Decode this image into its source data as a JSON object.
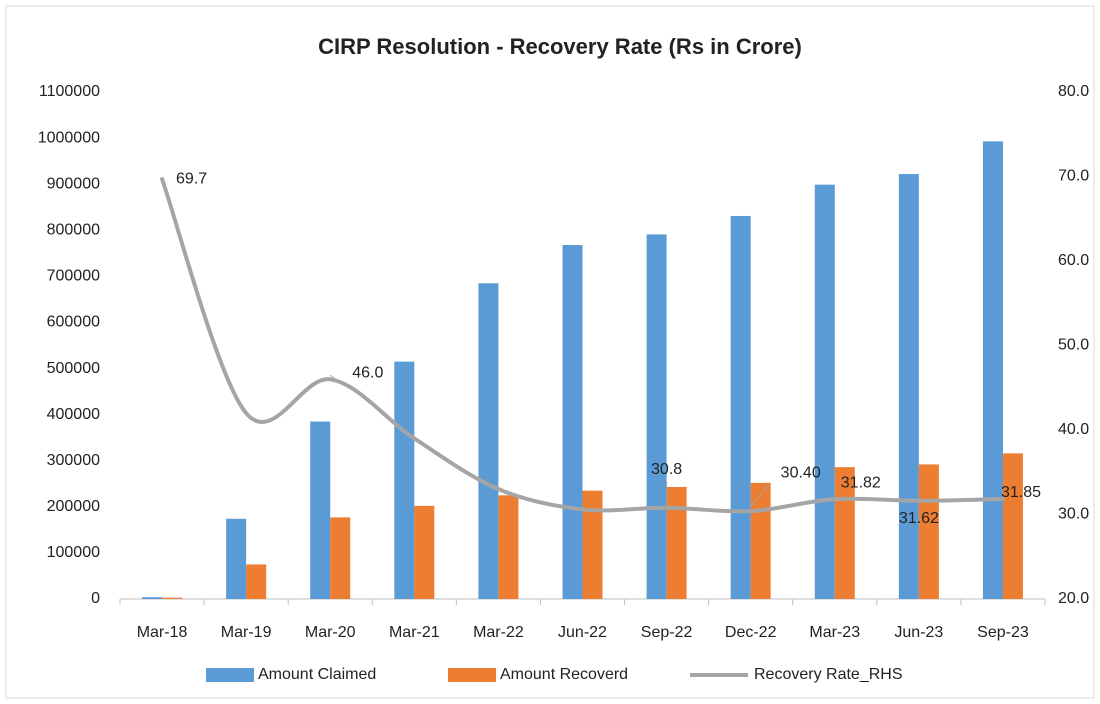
{
  "chart_data": {
    "type": "bar",
    "title": "CIRP Resolution - Recovery Rate (Rs in Crore)",
    "categories": [
      "Mar-18",
      "Mar-19",
      "Mar-20",
      "Mar-21",
      "Mar-22",
      "Jun-22",
      "Sep-22",
      "Dec-22",
      "Mar-23",
      "Jun-23",
      "Sep-23"
    ],
    "series": [
      {
        "name": "Amount Claimed",
        "type": "bar",
        "color": "#5b9bd5",
        "values": [
          4000,
          174000,
          385000,
          515000,
          685000,
          768000,
          791000,
          831000,
          899000,
          922000,
          993000
        ]
      },
      {
        "name": "Amount Recoverd",
        "type": "bar",
        "color": "#ed7d31",
        "values": [
          2800,
          75000,
          177000,
          202000,
          225000,
          235000,
          243000,
          252000,
          286000,
          292000,
          316000
        ]
      },
      {
        "name": "Recovery Rate_RHS",
        "type": "line",
        "axis": "y2",
        "color": "#a5a5a5",
        "values": [
          69.7,
          42,
          46.0,
          39,
          33,
          30.6,
          30.8,
          30.4,
          31.82,
          31.62,
          31.85
        ],
        "value_labels": [
          "69.7",
          null,
          "46.0",
          null,
          null,
          null,
          "30.8",
          "30.40",
          "31.82",
          "31.62",
          "31.85"
        ]
      }
    ],
    "ylim": [
      0,
      1100000
    ],
    "yticks": [
      0,
      100000,
      200000,
      300000,
      400000,
      500000,
      600000,
      700000,
      800000,
      900000,
      1000000,
      1100000
    ],
    "y2lim": [
      20,
      80
    ],
    "y2ticks": [
      {
        "value": 20,
        "label": "20.0"
      },
      {
        "value": 30,
        "label": "30.0"
      },
      {
        "value": 40,
        "label": "40.0"
      },
      {
        "value": 50,
        "label": "50.0"
      },
      {
        "value": 60,
        "label": "60.0"
      },
      {
        "value": 70,
        "label": "70.0"
      },
      {
        "value": 80,
        "label": "80.0"
      }
    ],
    "legend": "bottom"
  }
}
